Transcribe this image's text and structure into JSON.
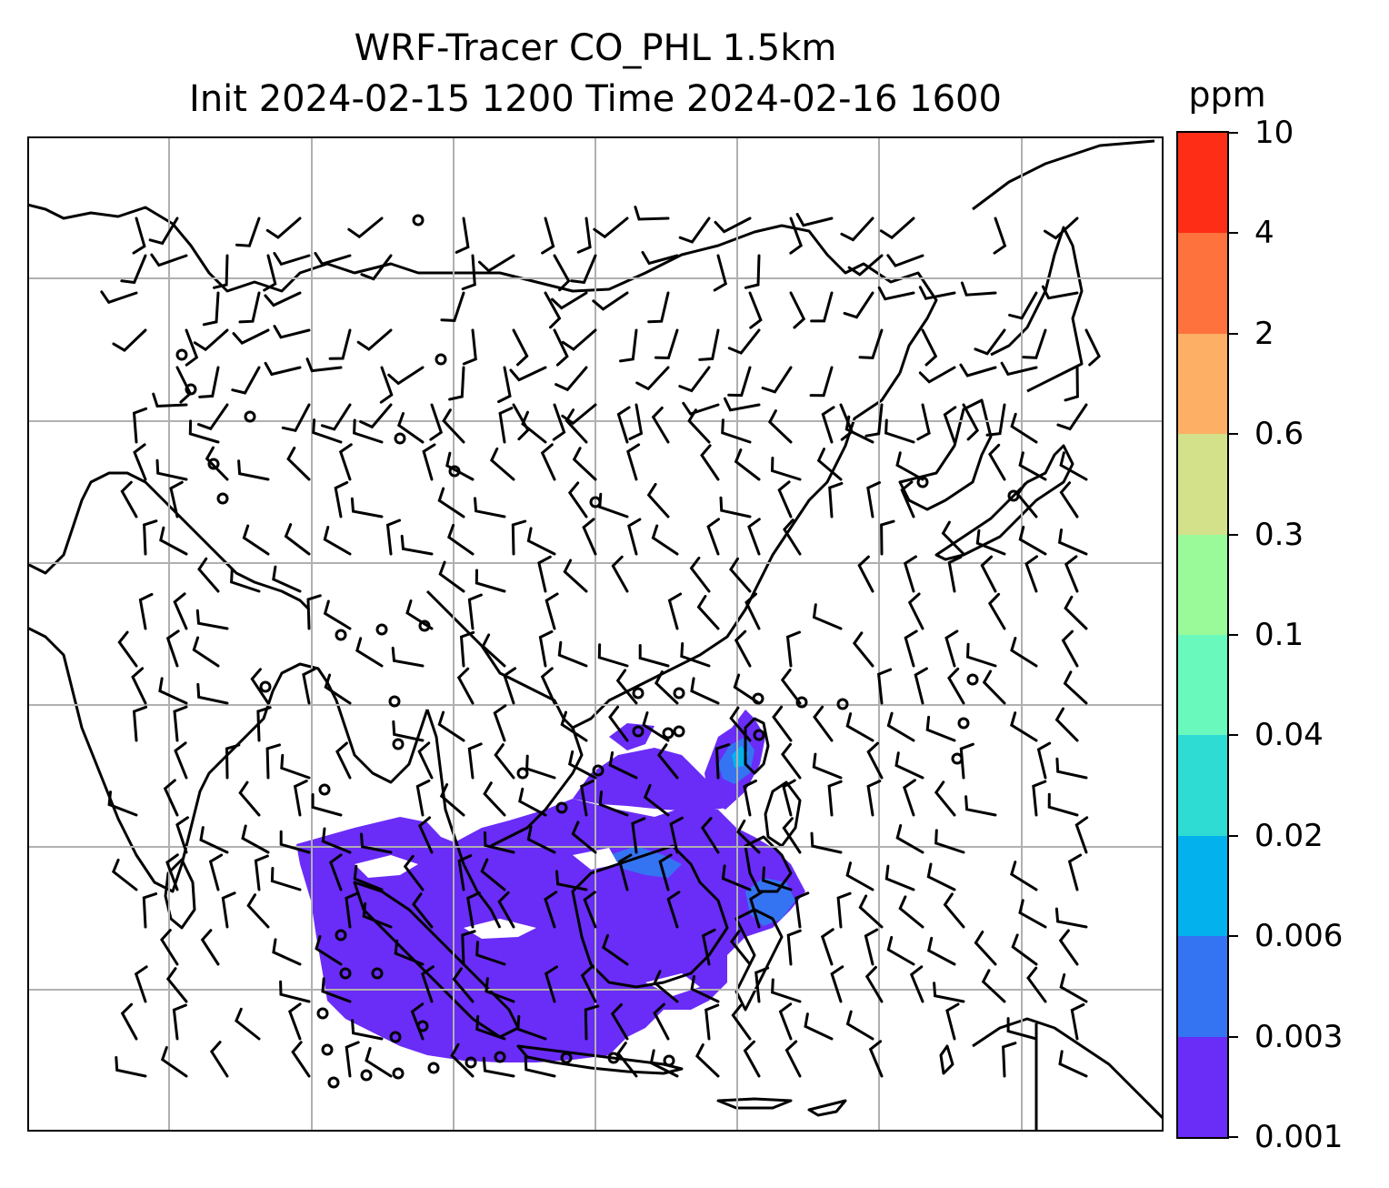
{
  "title": {
    "line1": "WRF-Tracer CO_PHL 1.5km",
    "line2": "Init 2024-02-15 1200 Time 2024-02-16 1600"
  },
  "colorbar": {
    "unit": "ppm",
    "ticks": [
      "0.001",
      "0.003",
      "0.006",
      "0.02",
      "0.04",
      "0.1",
      "0.3",
      "0.6",
      "2",
      "4",
      "10"
    ],
    "colors": [
      "#6a2cf7",
      "#3474f2",
      "#03b2ed",
      "#2fdcd3",
      "#69f9bd",
      "#9afa9a",
      "#d2e18a",
      "#fdb065",
      "#fe723d",
      "#fe2e16"
    ]
  },
  "map": {
    "coastline_color": "#000000",
    "gridline_color": "#b0b0b0",
    "barb_color": "#000000",
    "plume_levels": [
      "0.001",
      "0.003",
      "0.006"
    ]
  }
}
